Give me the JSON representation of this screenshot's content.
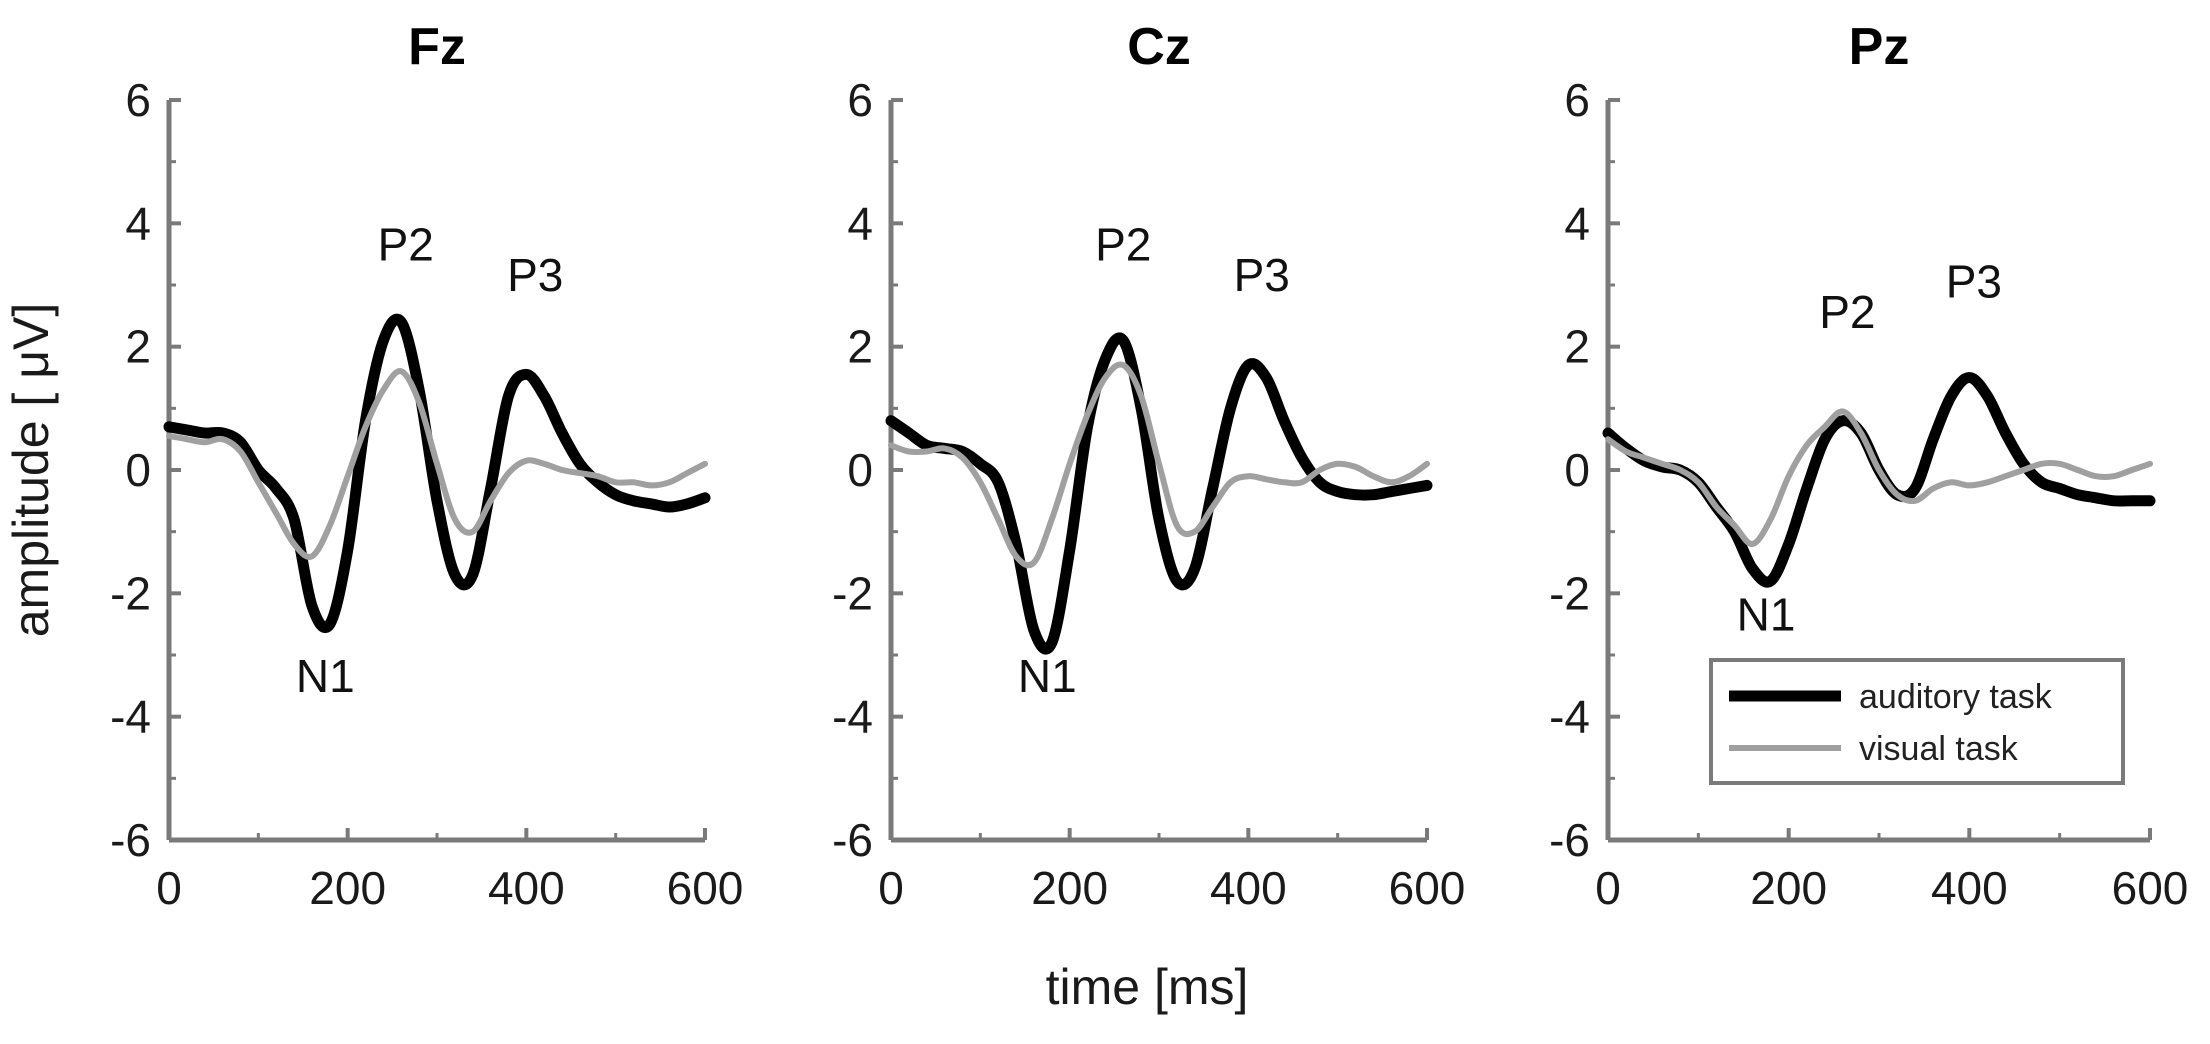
{
  "chart_data": {
    "type": "line",
    "xlabel": "time [ms]",
    "ylabel": "amplitude [ μV]",
    "xlim": [
      0,
      600
    ],
    "ylim": [
      -6,
      6
    ],
    "xticks": [
      0,
      200,
      400,
      600
    ],
    "yticks": [
      6,
      4,
      2,
      0,
      -2,
      -4,
      -6
    ],
    "series_styles": [
      {
        "name": "auditory task",
        "color": "#000000"
      },
      {
        "name": "visual task",
        "color": "#a0a0a0"
      }
    ],
    "legend": {
      "location": "lower-right of last panel",
      "entries": [
        "auditory task",
        "visual task"
      ]
    },
    "panels": [
      {
        "title": "Fz",
        "x": [
          0,
          20,
          40,
          60,
          80,
          100,
          120,
          140,
          160,
          180,
          200,
          220,
          240,
          260,
          280,
          300,
          320,
          340,
          360,
          380,
          400,
          420,
          440,
          460,
          480,
          500,
          520,
          540,
          560,
          580,
          600
        ],
        "series": [
          {
            "name": "auditory task",
            "values": [
              0.7,
              0.65,
              0.6,
              0.6,
              0.45,
              0.0,
              -0.3,
              -0.8,
              -2.2,
              -2.5,
              -1.3,
              0.8,
              2.1,
              2.4,
              1.3,
              -0.5,
              -1.7,
              -1.7,
              -0.3,
              1.2,
              1.55,
              1.2,
              0.6,
              0.1,
              -0.2,
              -0.4,
              -0.5,
              -0.55,
              -0.6,
              -0.55,
              -0.45
            ]
          },
          {
            "name": "visual task",
            "values": [
              0.55,
              0.5,
              0.45,
              0.5,
              0.3,
              -0.2,
              -0.7,
              -1.2,
              -1.4,
              -0.9,
              -0.1,
              0.7,
              1.3,
              1.6,
              1.1,
              0.1,
              -0.8,
              -1.0,
              -0.5,
              -0.05,
              0.15,
              0.1,
              0.0,
              -0.05,
              -0.1,
              -0.2,
              -0.2,
              -0.25,
              -0.2,
              -0.05,
              0.1
            ]
          }
        ],
        "annotations": [
          {
            "text": "N1",
            "x": 175,
            "y": -3.6
          },
          {
            "text": "P2",
            "x": 265,
            "y": 3.4
          },
          {
            "text": "P3",
            "x": 410,
            "y": 2.9
          }
        ]
      },
      {
        "title": "Cz",
        "x": [
          0,
          20,
          40,
          60,
          80,
          100,
          120,
          140,
          160,
          180,
          200,
          220,
          240,
          260,
          280,
          300,
          320,
          340,
          360,
          380,
          400,
          420,
          440,
          460,
          480,
          500,
          520,
          540,
          560,
          580,
          600
        ],
        "series": [
          {
            "name": "auditory task",
            "values": [
              0.8,
              0.6,
              0.4,
              0.35,
              0.3,
              0.1,
              -0.2,
              -1.2,
              -2.6,
              -2.8,
              -1.3,
              0.7,
              1.8,
              2.1,
              1.0,
              -0.8,
              -1.8,
              -1.6,
              -0.3,
              1.0,
              1.7,
              1.5,
              0.8,
              0.2,
              -0.2,
              -0.35,
              -0.4,
              -0.4,
              -0.35,
              -0.3,
              -0.25
            ]
          },
          {
            "name": "visual task",
            "values": [
              0.4,
              0.3,
              0.3,
              0.35,
              0.2,
              -0.2,
              -0.8,
              -1.4,
              -1.5,
              -0.8,
              0.1,
              0.9,
              1.5,
              1.7,
              1.2,
              0.1,
              -0.9,
              -1.0,
              -0.6,
              -0.2,
              -0.1,
              -0.15,
              -0.2,
              -0.2,
              0.0,
              0.1,
              0.05,
              -0.1,
              -0.2,
              -0.1,
              0.1
            ]
          }
        ],
        "annotations": [
          {
            "text": "N1",
            "x": 175,
            "y": -3.6
          },
          {
            "text": "P2",
            "x": 260,
            "y": 3.4
          },
          {
            "text": "P3",
            "x": 415,
            "y": 2.9
          }
        ]
      },
      {
        "title": "Pz",
        "x": [
          0,
          20,
          40,
          60,
          80,
          100,
          120,
          140,
          160,
          180,
          200,
          220,
          240,
          260,
          280,
          300,
          320,
          340,
          360,
          380,
          400,
          420,
          440,
          460,
          480,
          500,
          520,
          540,
          560,
          580,
          600
        ],
        "series": [
          {
            "name": "auditory task",
            "values": [
              0.6,
              0.35,
              0.15,
              0.05,
              0.0,
              -0.2,
              -0.6,
              -1.0,
              -1.6,
              -1.8,
              -1.2,
              -0.3,
              0.5,
              0.8,
              0.6,
              0.0,
              -0.4,
              -0.3,
              0.5,
              1.2,
              1.5,
              1.2,
              0.6,
              0.1,
              -0.2,
              -0.3,
              -0.4,
              -0.45,
              -0.5,
              -0.5,
              -0.5
            ]
          },
          {
            "name": "visual task",
            "values": [
              0.5,
              0.3,
              0.2,
              0.1,
              0.0,
              -0.2,
              -0.6,
              -0.9,
              -1.2,
              -0.8,
              -0.1,
              0.4,
              0.7,
              0.95,
              0.6,
              0.0,
              -0.4,
              -0.5,
              -0.3,
              -0.2,
              -0.25,
              -0.2,
              -0.1,
              0.0,
              0.1,
              0.1,
              0.0,
              -0.1,
              -0.1,
              0.0,
              0.1
            ]
          }
        ],
        "annotations": [
          {
            "text": "N1",
            "x": 175,
            "y": -2.6
          },
          {
            "text": "P2",
            "x": 265,
            "y": 2.3
          },
          {
            "text": "P3",
            "x": 405,
            "y": 2.8
          }
        ]
      }
    ]
  }
}
